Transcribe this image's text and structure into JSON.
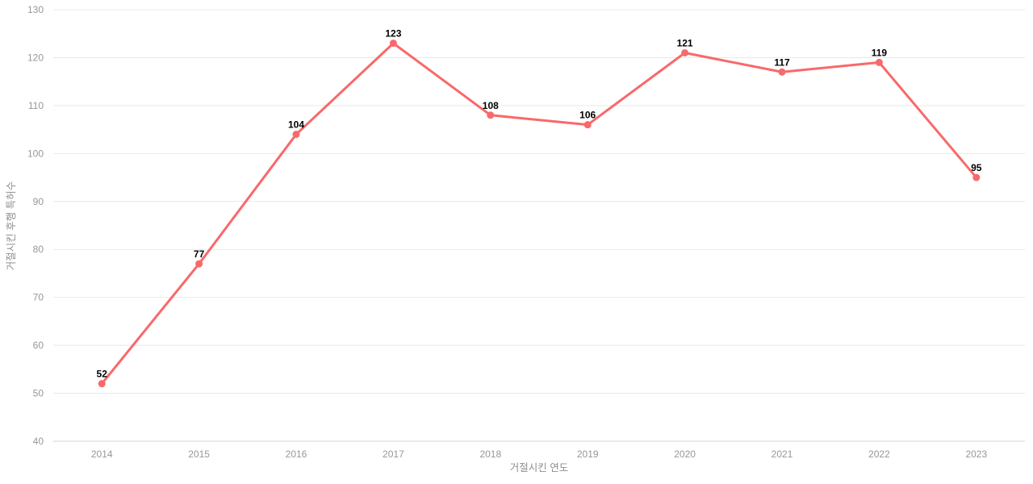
{
  "chart_data": {
    "type": "line",
    "title": "",
    "xlabel": "거절시킨 연도",
    "ylabel": "거절시킨 후행 특허수",
    "categories": [
      "2014",
      "2015",
      "2016",
      "2017",
      "2018",
      "2019",
      "2020",
      "2021",
      "2022",
      "2023"
    ],
    "values": [
      52,
      77,
      104,
      123,
      108,
      106,
      121,
      117,
      119,
      95
    ],
    "ylim": [
      40,
      130
    ],
    "ytick_step": 10,
    "ytick_labels": [
      "40",
      "50",
      "60",
      "70",
      "80",
      "90",
      "100",
      "110",
      "120",
      "130"
    ],
    "grid": true,
    "legend": "none",
    "colors": {
      "line": "#f8696b",
      "marker": "#f8696b",
      "grid": "#e9e9e9",
      "axis_line": "#ccd6e8",
      "tick_text": "#979797",
      "axis_title_text": "#8f8f8f",
      "point_label_text": "#000000",
      "background": "#ffffff"
    }
  }
}
